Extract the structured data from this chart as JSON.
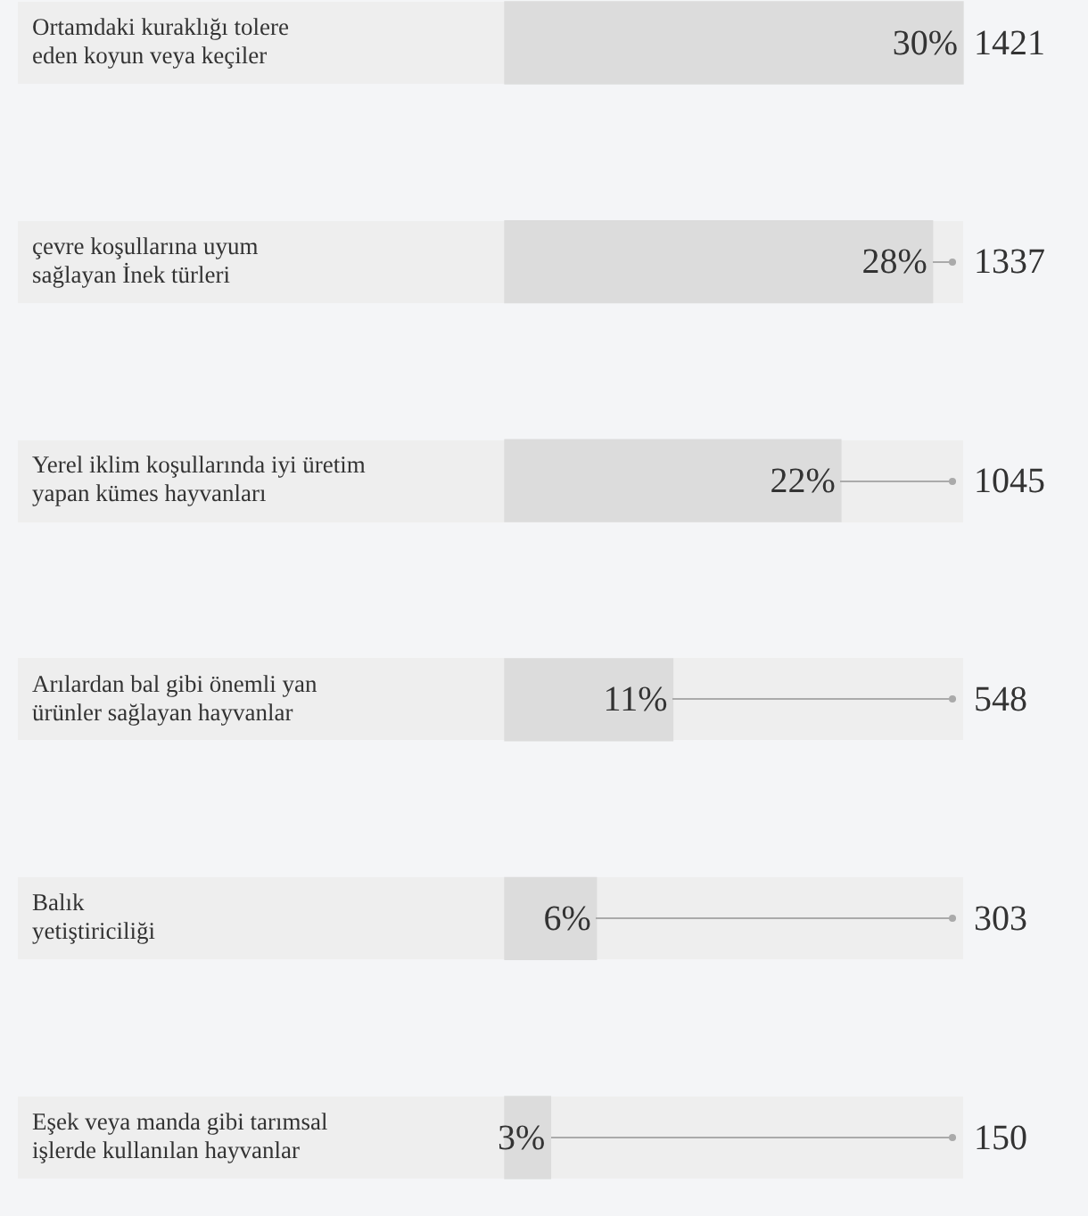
{
  "chart_data": {
    "type": "bar",
    "orientation": "horizontal",
    "categories": [
      "Ortamdaki kuraklığı tolere\neden koyun veya keçiler",
      "çevre koşullarına uyum\nsağlayan İnek türleri",
      "Yerel iklim koşullarında iyi üretim\nyapan kümes hayvanları",
      "Arılardan bal gibi önemli yan\nürünler sağlayan hayvanlar",
      "Balık\nyetiştiriciliği",
      "Eşek veya manda gibi tarımsal\nişlerde kullanılan hayvanlar"
    ],
    "values": [
      30,
      28,
      22,
      11,
      6,
      3
    ],
    "value_labels": [
      "30%",
      "28%",
      "22%",
      "11%",
      "6%",
      "3%"
    ],
    "color": "#dcdcdc",
    "annotations": [
      "1421",
      "1337",
      "1045",
      "548",
      "303",
      "150"
    ],
    "legend": false
  }
}
